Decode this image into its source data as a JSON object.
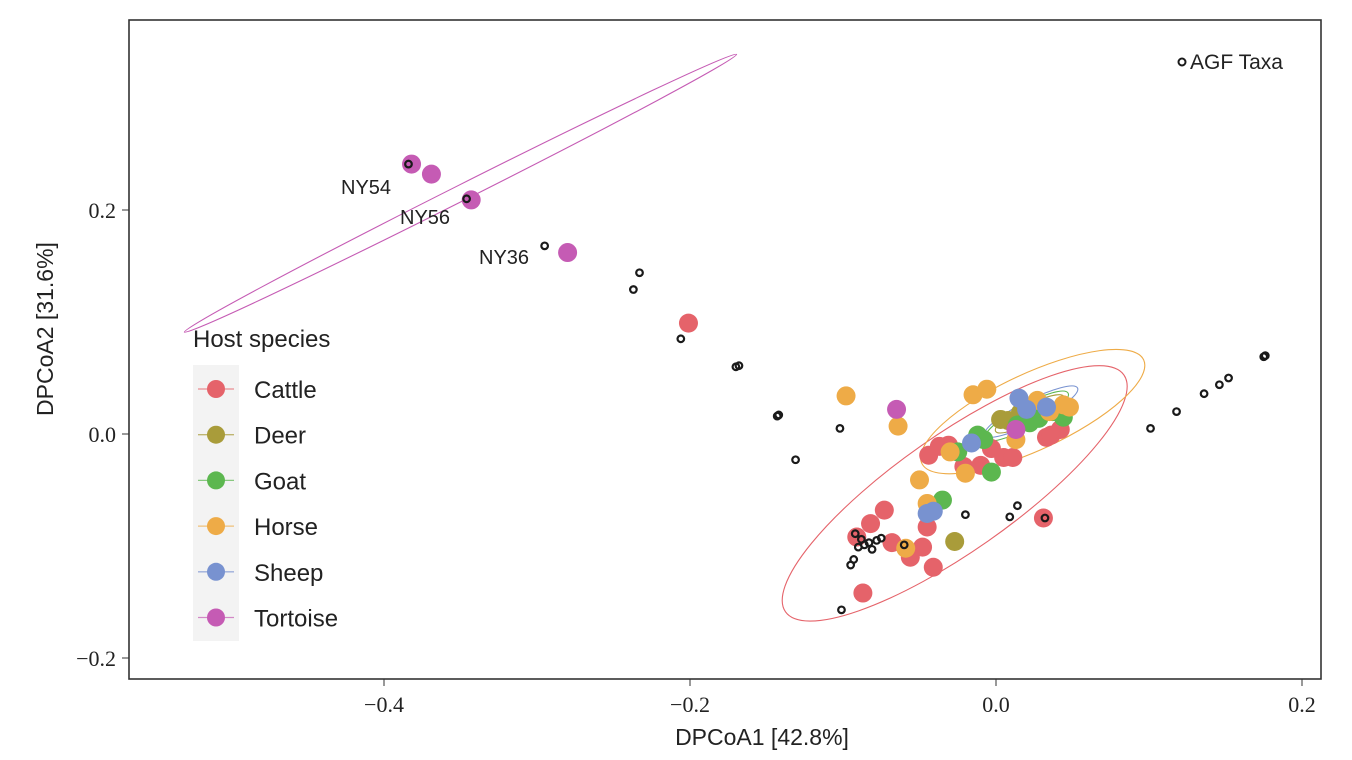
{
  "chart_data": {
    "type": "scatter",
    "title": "",
    "xlabel": "DPCoA1   [42.8%]",
    "ylabel": "DPCoA2   [31.6%]",
    "xlim": [
      -0.566,
      0.212
    ],
    "ylim": [
      -0.218,
      0.369
    ],
    "xticks": [
      -0.4,
      -0.2,
      0.0,
      0.2
    ],
    "xtick_labels": [
      "−0.4",
      "−0.2",
      "0.0",
      "0.2"
    ],
    "yticks": [
      -0.2,
      0.0,
      0.2
    ],
    "ytick_labels": [
      "−0.2",
      "0.0",
      "0.2"
    ],
    "grid": false,
    "legend": {
      "title": "Host species",
      "placement": "left",
      "entries": [
        {
          "name": "Cattle",
          "color": "#e5636a"
        },
        {
          "name": "Deer",
          "color": "#a99c3a"
        },
        {
          "name": "Goat",
          "color": "#5cb74f"
        },
        {
          "name": "Horse",
          "color": "#eeab47"
        },
        {
          "name": "Sheep",
          "color": "#7892d0"
        },
        {
          "name": "Tortoise",
          "color": "#c55bb4"
        }
      ]
    },
    "taxa_legend": {
      "label": "AGF Taxa",
      "placement": "top-right"
    },
    "series": [
      {
        "name": "Cattle",
        "color": "#e5636a",
        "points": [
          [
            -0.201,
            0.099
          ],
          [
            -0.044,
            -0.019
          ],
          [
            -0.031,
            -0.01
          ],
          [
            -0.021,
            -0.029
          ],
          [
            -0.01,
            -0.028
          ],
          [
            -0.003,
            -0.013
          ],
          [
            0.005,
            -0.021
          ],
          [
            0.011,
            -0.021
          ],
          [
            0.033,
            -0.003
          ],
          [
            0.042,
            0.004
          ],
          [
            -0.073,
            -0.068
          ],
          [
            -0.082,
            -0.08
          ],
          [
            -0.091,
            -0.092
          ],
          [
            -0.068,
            -0.097
          ],
          [
            -0.056,
            -0.11
          ],
          [
            -0.048,
            -0.101
          ],
          [
            -0.045,
            -0.083
          ],
          [
            -0.041,
            -0.119
          ],
          [
            -0.087,
            -0.142
          ],
          [
            0.031,
            -0.075
          ],
          [
            -0.037,
            -0.011
          ],
          [
            0.036,
            -0.001
          ]
        ]
      },
      {
        "name": "Deer",
        "color": "#a99c3a",
        "points": [
          [
            0.003,
            0.013
          ],
          [
            -0.027,
            -0.096
          ],
          [
            0.016,
            0.019
          ],
          [
            0.008,
            0.012
          ]
        ]
      },
      {
        "name": "Goat",
        "color": "#5cb74f",
        "points": [
          [
            -0.012,
            -0.001
          ],
          [
            -0.008,
            -0.005
          ],
          [
            -0.025,
            -0.016
          ],
          [
            -0.003,
            -0.034
          ],
          [
            -0.035,
            -0.059
          ],
          [
            0.022,
            0.01
          ],
          [
            0.037,
            0.02
          ],
          [
            0.044,
            0.015
          ],
          [
            0.028,
            0.014
          ],
          [
            0.014,
            0.008
          ]
        ]
      },
      {
        "name": "Horse",
        "color": "#eeab47",
        "points": [
          [
            -0.098,
            0.034
          ],
          [
            -0.064,
            0.007
          ],
          [
            -0.015,
            0.035
          ],
          [
            -0.006,
            0.04
          ],
          [
            -0.05,
            -0.041
          ],
          [
            -0.045,
            -0.062
          ],
          [
            -0.03,
            -0.016
          ],
          [
            -0.02,
            -0.035
          ],
          [
            0.013,
            -0.005
          ],
          [
            0.027,
            0.03
          ],
          [
            0.044,
            0.026
          ],
          [
            0.048,
            0.024
          ],
          [
            -0.059,
            -0.102
          ],
          [
            0.035,
            0.02
          ]
        ]
      },
      {
        "name": "Sheep",
        "color": "#7892d0",
        "points": [
          [
            -0.016,
            -0.008
          ],
          [
            0.015,
            0.032
          ],
          [
            -0.045,
            -0.071
          ],
          [
            -0.041,
            -0.069
          ],
          [
            0.033,
            0.024
          ],
          [
            0.02,
            0.022
          ]
        ]
      },
      {
        "name": "Tortoise",
        "color": "#c55bb4",
        "points": [
          [
            -0.382,
            0.241
          ],
          [
            -0.369,
            0.232
          ],
          [
            -0.343,
            0.209
          ],
          [
            -0.28,
            0.162
          ],
          [
            -0.065,
            0.022
          ],
          [
            0.013,
            0.004
          ]
        ],
        "labels": [
          {
            "text": "NY54",
            "x": -0.382,
            "y": 0.241
          },
          {
            "text": "NY56",
            "x": -0.343,
            "y": 0.209
          },
          {
            "text": "NY36",
            "x": -0.28,
            "y": 0.162
          }
        ]
      }
    ],
    "agf_taxa": [
      [
        -0.384,
        0.241
      ],
      [
        -0.346,
        0.21
      ],
      [
        -0.295,
        0.168
      ],
      [
        -0.233,
        0.144
      ],
      [
        -0.237,
        0.129
      ],
      [
        -0.206,
        0.085
      ],
      [
        -0.17,
        0.06
      ],
      [
        -0.168,
        0.061
      ],
      [
        -0.143,
        0.016
      ],
      [
        -0.142,
        0.017
      ],
      [
        -0.131,
        -0.023
      ],
      [
        -0.102,
        0.005
      ],
      [
        -0.02,
        -0.072
      ],
      [
        0.009,
        -0.074
      ],
      [
        0.014,
        -0.064
      ],
      [
        0.032,
        -0.075
      ],
      [
        -0.101,
        -0.157
      ],
      [
        -0.095,
        -0.117
      ],
      [
        -0.093,
        -0.112
      ],
      [
        -0.092,
        -0.089
      ],
      [
        -0.09,
        -0.101
      ],
      [
        -0.088,
        -0.094
      ],
      [
        -0.086,
        -0.099
      ],
      [
        -0.083,
        -0.097
      ],
      [
        -0.081,
        -0.103
      ],
      [
        -0.078,
        -0.095
      ],
      [
        -0.075,
        -0.093
      ],
      [
        -0.06,
        -0.099
      ],
      [
        0.101,
        0.005
      ],
      [
        0.118,
        0.02
      ],
      [
        0.136,
        0.036
      ],
      [
        0.146,
        0.044
      ],
      [
        0.152,
        0.05
      ],
      [
        0.176,
        0.07
      ],
      [
        0.175,
        0.069
      ]
    ],
    "ellipses": [
      {
        "group": "Tortoise",
        "color": "#c55bb4",
        "center": [
          -0.35,
          0.215
        ],
        "semi_major": 0.202,
        "semi_minor": 0.007,
        "angle_deg": -26.7
      },
      {
        "group": "Cattle",
        "color": "#e5636a",
        "center": [
          -0.027,
          -0.053
        ],
        "semi_major": 0.135,
        "semi_minor": 0.052,
        "angle_deg": -35
      },
      {
        "group": "Horse",
        "color": "#eeab47",
        "center": [
          0.024,
          0.02
        ],
        "semi_major": 0.08,
        "semi_minor": 0.034,
        "angle_deg": -25
      },
      {
        "group": "Sheep",
        "color": "#7892d0",
        "center": [
          0.023,
          0.02
        ],
        "semi_major": 0.034,
        "semi_minor": 0.01,
        "angle_deg": -27
      },
      {
        "group": "Goat",
        "color": "#5cb74f",
        "center": [
          0.02,
          0.016
        ],
        "semi_major": 0.031,
        "semi_minor": 0.01,
        "angle_deg": -29
      },
      {
        "group": "Deer",
        "color": "#a99c3a",
        "center": [
          0.022,
          0.018
        ],
        "semi_major": 0.025,
        "semi_minor": 0.008,
        "angle_deg": -27
      }
    ]
  }
}
